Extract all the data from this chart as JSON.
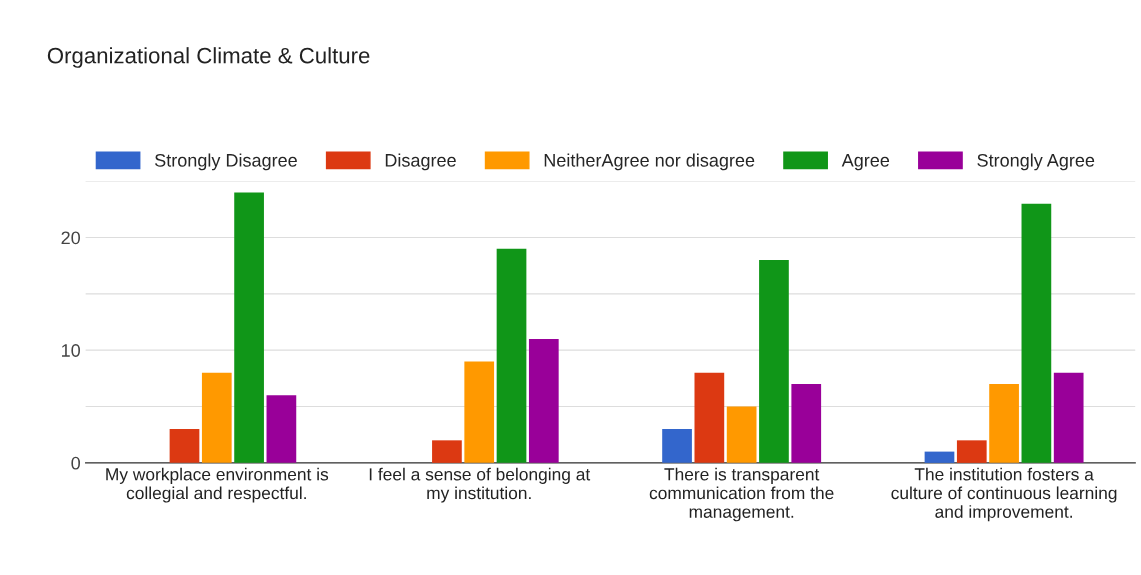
{
  "chart_data": {
    "type": "bar",
    "title": "Organizational Climate & Culture",
    "categories": [
      "My workplace environment is collegial and respectful.",
      "I feel a sense of belonging at my institution.",
      "There is transparent communication from the management.",
      "The institution fosters a culture of continuous learning and improvement."
    ],
    "series": [
      {
        "name": "Strongly Disagree",
        "color": "#3366cc",
        "values": [
          0,
          0,
          3,
          1
        ]
      },
      {
        "name": "Disagree",
        "color": "#dc3912",
        "values": [
          3,
          2,
          8,
          2
        ]
      },
      {
        "name": "NeitherAgree nor disagree",
        "color": "#ff9900",
        "values": [
          8,
          9,
          5,
          7
        ]
      },
      {
        "name": "Agree",
        "color": "#109618",
        "values": [
          24,
          19,
          18,
          23
        ]
      },
      {
        "name": "Strongly Agree",
        "color": "#990099",
        "values": [
          6,
          11,
          7,
          8
        ]
      }
    ],
    "ylim": [
      0,
      25
    ],
    "yticks": [
      0,
      {
        "value": 5,
        "label": null
      },
      10,
      {
        "value": 15,
        "label": null
      },
      20,
      {
        "value": 25,
        "label": null
      }
    ],
    "grid": "y",
    "legend": "top"
  }
}
